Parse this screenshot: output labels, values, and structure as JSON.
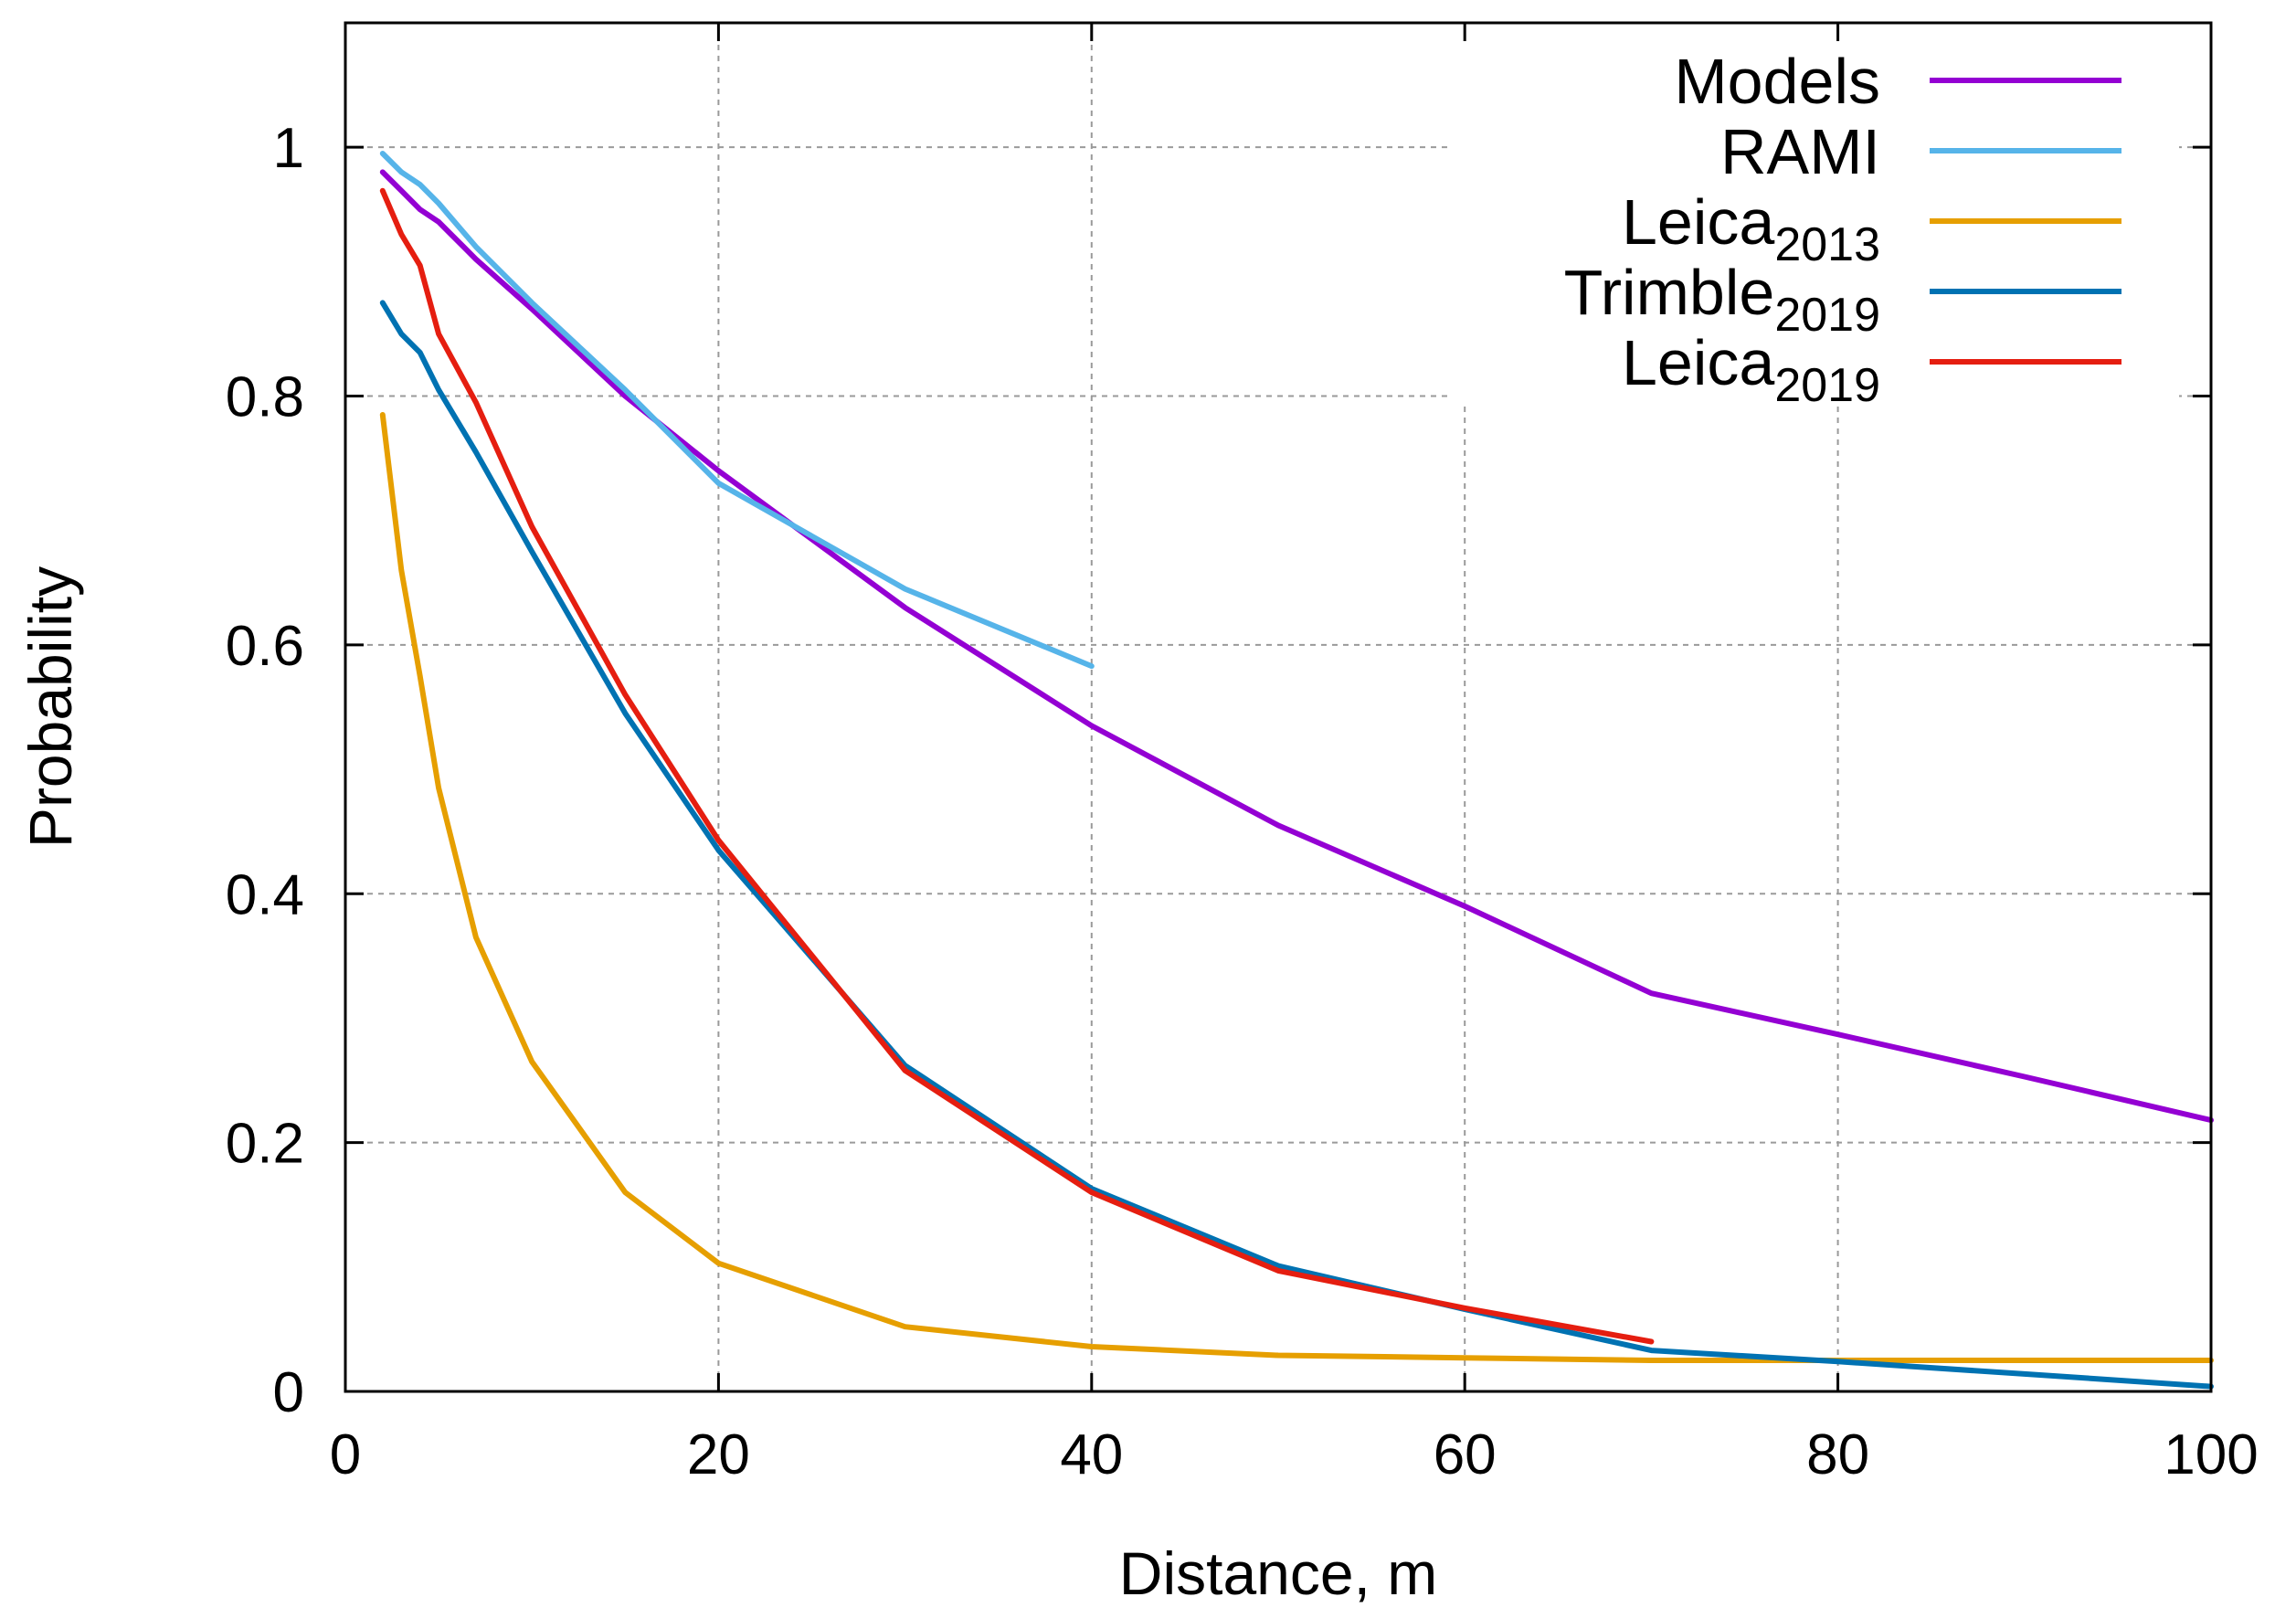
{
  "chart_data": {
    "type": "line",
    "title": "",
    "xlabel": "Distance, m",
    "ylabel": "Probability",
    "xlim": [
      0,
      100
    ],
    "ylim": [
      0,
      1.1
    ],
    "grid": true,
    "legend_position": "top-right",
    "xticks": [
      0,
      20,
      40,
      60,
      80,
      100
    ],
    "xtick_labels": [
      "0",
      "20",
      "40",
      "60",
      "80",
      "100"
    ],
    "yticks": [
      0,
      0.2,
      0.4,
      0.6,
      0.8,
      1
    ],
    "ytick_labels": [
      "0",
      "0.2",
      "0.4",
      "0.6",
      "0.8",
      "1"
    ],
    "series": [
      {
        "name": "Models",
        "label_main": "Models",
        "label_sub": "",
        "color": "#9400d3",
        "x": [
          2,
          3,
          4,
          5,
          7,
          10,
          15,
          20,
          30,
          40,
          50,
          60,
          70,
          80,
          90,
          100
        ],
        "y": [
          0.98,
          0.965,
          0.95,
          0.94,
          0.91,
          0.87,
          0.8,
          0.74,
          0.63,
          0.535,
          0.455,
          0.39,
          0.32,
          0.287,
          0.253,
          0.218
        ]
      },
      {
        "name": "RAMI",
        "label_main": "RAMI",
        "label_sub": "",
        "color": "#56b4e9",
        "x": [
          2,
          3,
          4,
          5,
          7,
          10,
          15,
          20,
          30,
          40
        ],
        "y": [
          0.995,
          0.98,
          0.97,
          0.955,
          0.92,
          0.875,
          0.805,
          0.73,
          0.645,
          0.583
        ]
      },
      {
        "name": "Leica2013",
        "label_main": "Leica",
        "label_sub": "2013",
        "color": "#e69f00",
        "x": [
          2,
          3,
          4,
          5,
          7,
          10,
          15,
          20,
          30,
          40,
          50,
          60,
          70,
          80,
          90,
          100
        ],
        "y": [
          0.785,
          0.66,
          0.575,
          0.485,
          0.365,
          0.265,
          0.16,
          0.103,
          0.052,
          0.036,
          0.029,
          0.027,
          0.025,
          0.025,
          0.025,
          0.025
        ]
      },
      {
        "name": "Trimble2019",
        "label_main": "Trimble",
        "label_sub": "2019",
        "color": "#0072b2",
        "x": [
          2,
          3,
          4,
          5,
          7,
          10,
          15,
          20,
          30,
          40,
          50,
          60,
          70,
          80,
          90,
          100
        ],
        "y": [
          0.875,
          0.85,
          0.835,
          0.805,
          0.755,
          0.675,
          0.545,
          0.435,
          0.262,
          0.163,
          0.101,
          0.066,
          0.033,
          0.024,
          0.014,
          0.004
        ]
      },
      {
        "name": "Leica2019",
        "label_main": "Leica",
        "label_sub": "2019",
        "color": "#e51e10",
        "x": [
          2,
          3,
          4,
          5,
          7,
          10,
          15,
          20,
          30,
          40,
          50,
          60,
          70
        ],
        "y": [
          0.965,
          0.93,
          0.905,
          0.85,
          0.795,
          0.695,
          0.56,
          0.443,
          0.258,
          0.16,
          0.097,
          0.067,
          0.04
        ]
      }
    ]
  }
}
